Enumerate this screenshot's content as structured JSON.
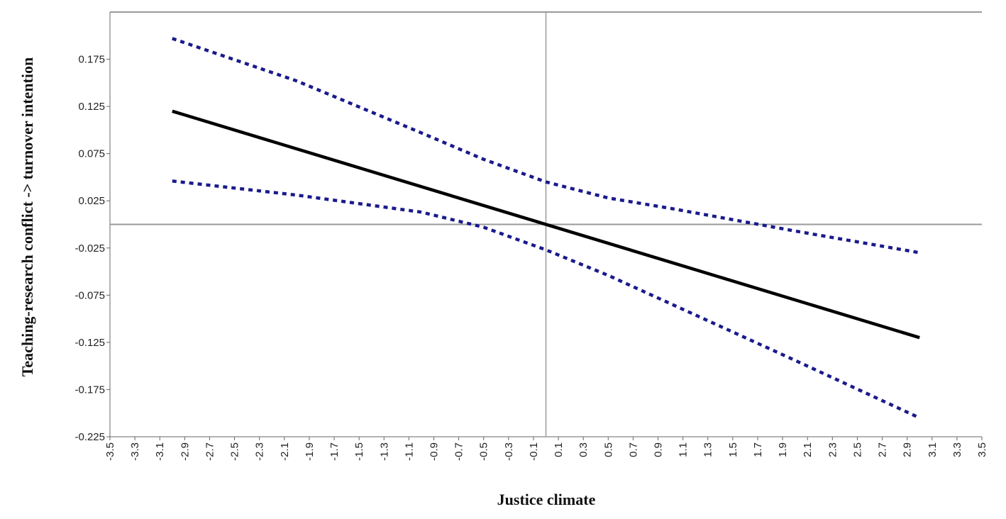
{
  "chart_data": {
    "type": "line",
    "title": "",
    "xlabel": "Justice climate",
    "ylabel": "Teaching-research conflict -> turnover intention",
    "xlim": [
      -3.5,
      3.5
    ],
    "ylim": [
      -0.225,
      0.225
    ],
    "xticks": [
      "-3.5",
      "-3.3",
      "-3.1",
      "-2.9",
      "-2.7",
      "-2.5",
      "-2.3",
      "-2.1",
      "-1.9",
      "-1.7",
      "-1.5",
      "-1.3",
      "-1.1",
      "-0.9",
      "-0.7",
      "-0.5",
      "-0.3",
      "-0.1",
      "0.1",
      "0.3",
      "0.5",
      "0.7",
      "0.9",
      "1.1",
      "1.3",
      "1.5",
      "1.7",
      "1.9",
      "2.1",
      "2.3",
      "2.5",
      "2.7",
      "2.9",
      "3.1",
      "3.3",
      "3.5"
    ],
    "yticks": [
      "0.175",
      "0.125",
      "0.075",
      "0.025",
      "-0.025",
      "-0.075",
      "-0.125",
      "-0.175",
      "-0.225"
    ],
    "reference_lines": {
      "x": 0,
      "y": 0
    },
    "grid": false,
    "series": [
      {
        "role": "estimate",
        "style": "solid",
        "color": "#000000",
        "x": [
          -3,
          3
        ],
        "y": [
          0.12,
          -0.12
        ]
      },
      {
        "role": "upper-bound",
        "style": "dotted",
        "color": "#1a1a8c",
        "x": [
          -3,
          -2,
          -1,
          -0.5,
          0,
          0.5,
          1,
          2,
          3
        ],
        "y": [
          0.197,
          0.152,
          0.097,
          0.069,
          0.045,
          0.028,
          0.017,
          -0.007,
          -0.03
        ]
      },
      {
        "role": "lower-bound",
        "style": "dotted",
        "color": "#1a1a8c",
        "x": [
          -3,
          -2,
          -1,
          -0.5,
          0,
          0.5,
          1,
          2,
          3
        ],
        "y": [
          0.046,
          0.031,
          0.013,
          -0.003,
          -0.027,
          -0.054,
          -0.084,
          -0.144,
          -0.205
        ]
      }
    ]
  }
}
